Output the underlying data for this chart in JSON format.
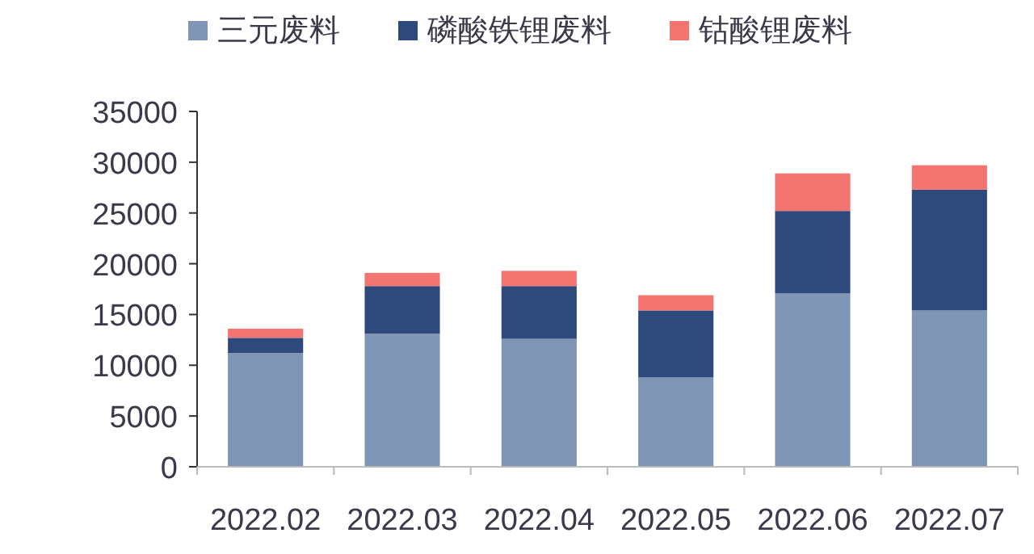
{
  "chart_data": {
    "type": "bar",
    "stacked": true,
    "legend": "top",
    "categories": [
      "2022.02",
      "2022.03",
      "2022.04",
      "2022.05",
      "2022.06",
      "2022.07"
    ],
    "series": [
      {
        "name": "三元废料",
        "color": "#7f95b5",
        "values": [
          11200,
          13100,
          12600,
          8800,
          17100,
          15400
        ]
      },
      {
        "name": "磷酸铁锂废料",
        "color": "#2e4a7d",
        "values": [
          1500,
          4700,
          5200,
          6600,
          8100,
          11900
        ]
      },
      {
        "name": "钴酸锂废料",
        "color": "#f47570",
        "values": [
          900,
          1300,
          1500,
          1500,
          3700,
          2400
        ]
      }
    ],
    "ylim": [
      0,
      35000
    ],
    "yticks": [
      0,
      5000,
      10000,
      15000,
      20000,
      25000,
      30000,
      35000
    ]
  }
}
